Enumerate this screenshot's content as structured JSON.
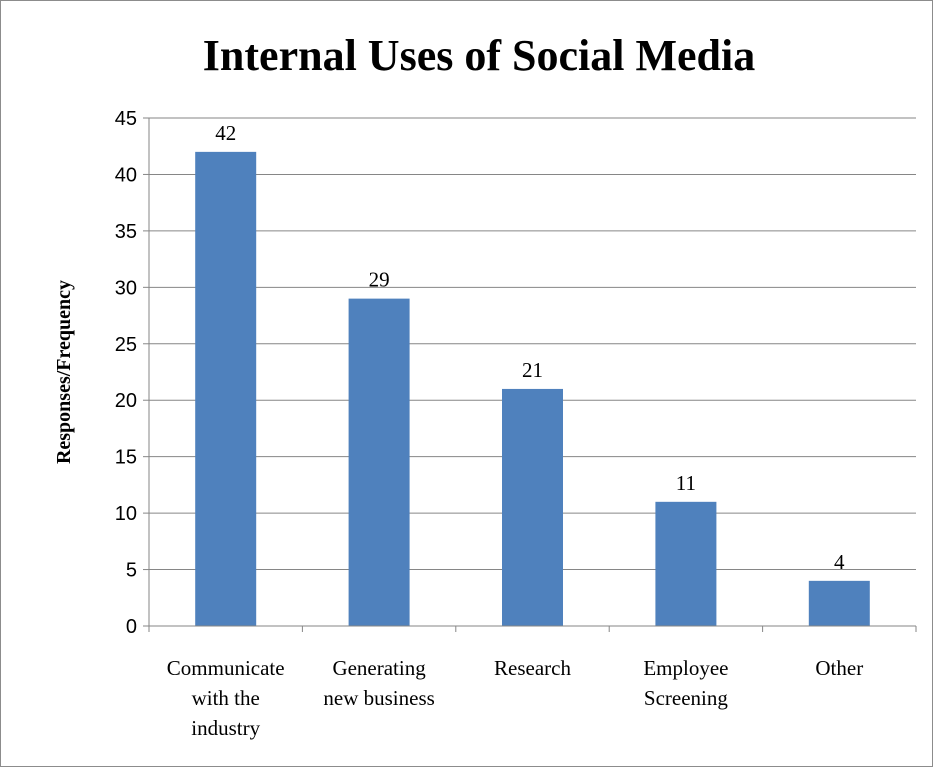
{
  "chart_data": {
    "type": "bar",
    "title": "Internal Uses of Social Media",
    "ylabel": "Responses/Frequency",
    "xlabel": "",
    "categories": [
      [
        "Communicate",
        "with the",
        "industry"
      ],
      [
        "Generating",
        "new business"
      ],
      [
        "Research"
      ],
      [
        "Employee",
        "Screening"
      ],
      [
        "Other"
      ]
    ],
    "values": [
      42,
      29,
      21,
      11,
      4
    ],
    "data_labels": [
      "42",
      "29",
      "21",
      "11",
      "4"
    ],
    "ylim": [
      0,
      45
    ],
    "yticks": [
      "0",
      "5",
      "10",
      "15",
      "20",
      "25",
      "30",
      "35",
      "40",
      "45"
    ],
    "grid": true,
    "bar_color": "#4f81bd"
  }
}
